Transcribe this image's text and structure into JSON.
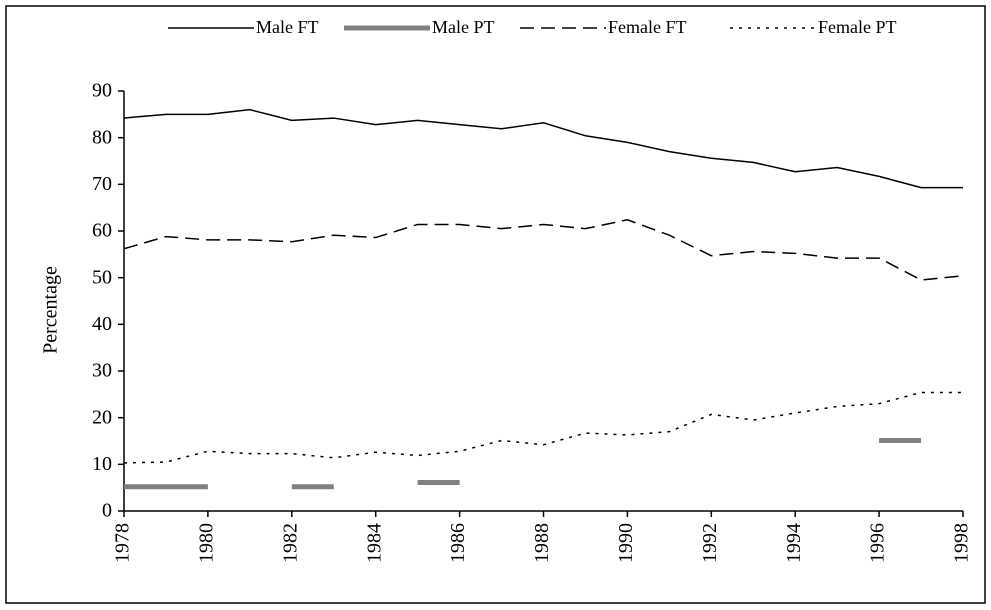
{
  "chart_data": {
    "type": "line",
    "x": [
      1978,
      1979,
      1980,
      1981,
      1982,
      1983,
      1984,
      1985,
      1986,
      1987,
      1988,
      1989,
      1990,
      1991,
      1992,
      1993,
      1994,
      1995,
      1996,
      1997,
      1998
    ],
    "series": [
      {
        "name": "Male FT",
        "color": "#000000",
        "style": "solid",
        "values": [
          84.2,
          85,
          85,
          86,
          83.7,
          84.2,
          82.8,
          83.7,
          82.8,
          81.9,
          83.2,
          80.4,
          79,
          77,
          75.6,
          74.7,
          72.7,
          73.6,
          71.7,
          69.3,
          69.3
        ]
      },
      {
        "name": "Male PT",
        "color": "#808080",
        "style": "thick",
        "values": [
          5.2,
          5.2,
          5.2,
          null,
          5.2,
          5.2,
          null,
          6.1,
          6.1,
          null,
          null,
          null,
          null,
          null,
          null,
          null,
          null,
          null,
          15.1,
          15.1,
          null
        ]
      },
      {
        "name": "Female FT",
        "color": "#000000",
        "style": "dashed",
        "values": [
          56.2,
          58.8,
          58.1,
          58.1,
          57.7,
          59.1,
          58.6,
          61.4,
          61.4,
          60.5,
          61.4,
          60.5,
          62.4,
          59.1,
          54.7,
          55.6,
          55.2,
          54.2,
          54.2,
          49.5,
          50.4
        ]
      },
      {
        "name": "Female PT",
        "color": "#000000",
        "style": "dotted",
        "values": [
          10.3,
          10.5,
          12.8,
          12.3,
          12.3,
          11.4,
          12.6,
          11.9,
          12.8,
          15.1,
          14.2,
          16.7,
          16.3,
          17,
          20.7,
          19.5,
          21,
          22.4,
          23,
          25.4,
          25.4
        ]
      }
    ],
    "y_label": "Percentage",
    "xlim": [
      1978,
      1998
    ],
    "xticks": [
      1978,
      1980,
      1982,
      1984,
      1986,
      1988,
      1990,
      1992,
      1994,
      1996,
      1998
    ],
    "ylim": [
      0,
      90
    ],
    "yticks": [
      0,
      10,
      20,
      30,
      40,
      50,
      60,
      70,
      80,
      90
    ],
    "grid": false,
    "legend": "top"
  }
}
